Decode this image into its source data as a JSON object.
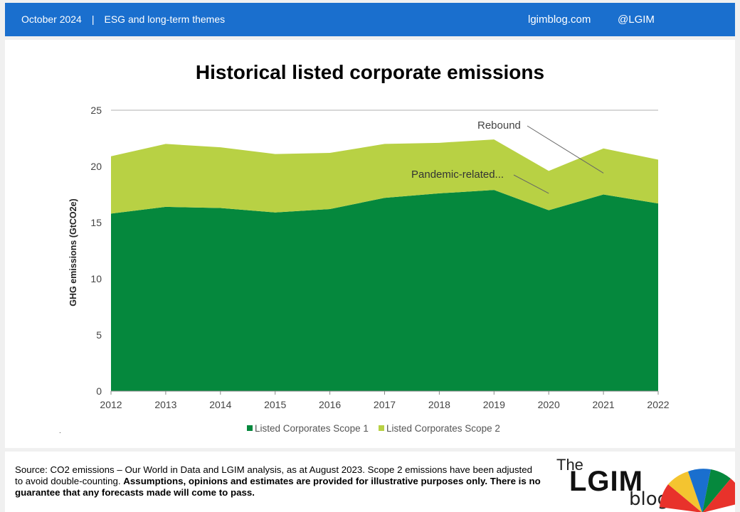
{
  "header": {
    "date": "October 2024",
    "separator": "|",
    "section": "ESG and long-term themes",
    "site": "lgimblog.com",
    "handle": "@LGIM"
  },
  "chart_data": {
    "type": "area",
    "title": "Historical listed corporate emissions",
    "xlabel": "",
    "ylabel": "GHG emissions (GtCO2e)",
    "x": [
      "2012",
      "2013",
      "2014",
      "2015",
      "2016",
      "2017",
      "2018",
      "2019",
      "2020",
      "2021",
      "2022"
    ],
    "ylim": [
      0,
      25
    ],
    "yticks": [
      0,
      5,
      10,
      15,
      20,
      25
    ],
    "stacked": true,
    "series": [
      {
        "name": "Listed Corporates Scope 1",
        "values": [
          15.8,
          16.4,
          16.3,
          15.9,
          16.2,
          17.2,
          17.6,
          17.9,
          16.1,
          17.5,
          16.7
        ],
        "color": "#05883d"
      },
      {
        "name": "Listed Corporates Scope 2",
        "values": [
          5.1,
          5.6,
          5.4,
          5.2,
          5.0,
          4.8,
          4.5,
          4.5,
          3.5,
          4.1,
          3.9
        ],
        "color": "#b8d144"
      }
    ],
    "annotations": [
      {
        "text": "Rebound",
        "x": "2021",
        "y": 19.4
      },
      {
        "text": "Pandemic-related...",
        "x": "2020",
        "y": 17.6
      }
    ],
    "legend_position": "bottom",
    "grid": false
  },
  "footer": {
    "source_text": "Source: CO2 emissions – Our World in Data and LGIM analysis, as at August 2023. Scope 2 emissions have been adjusted to avoid double-counting.",
    "disclaimer": "Assumptions,  opinions and estimates are provided for illustrative purposes only.  There is no guarantee that any forecasts made will come to pass.",
    "logo_the": "The",
    "logo_lgim": "LGIM",
    "logo_blog": "blog"
  }
}
